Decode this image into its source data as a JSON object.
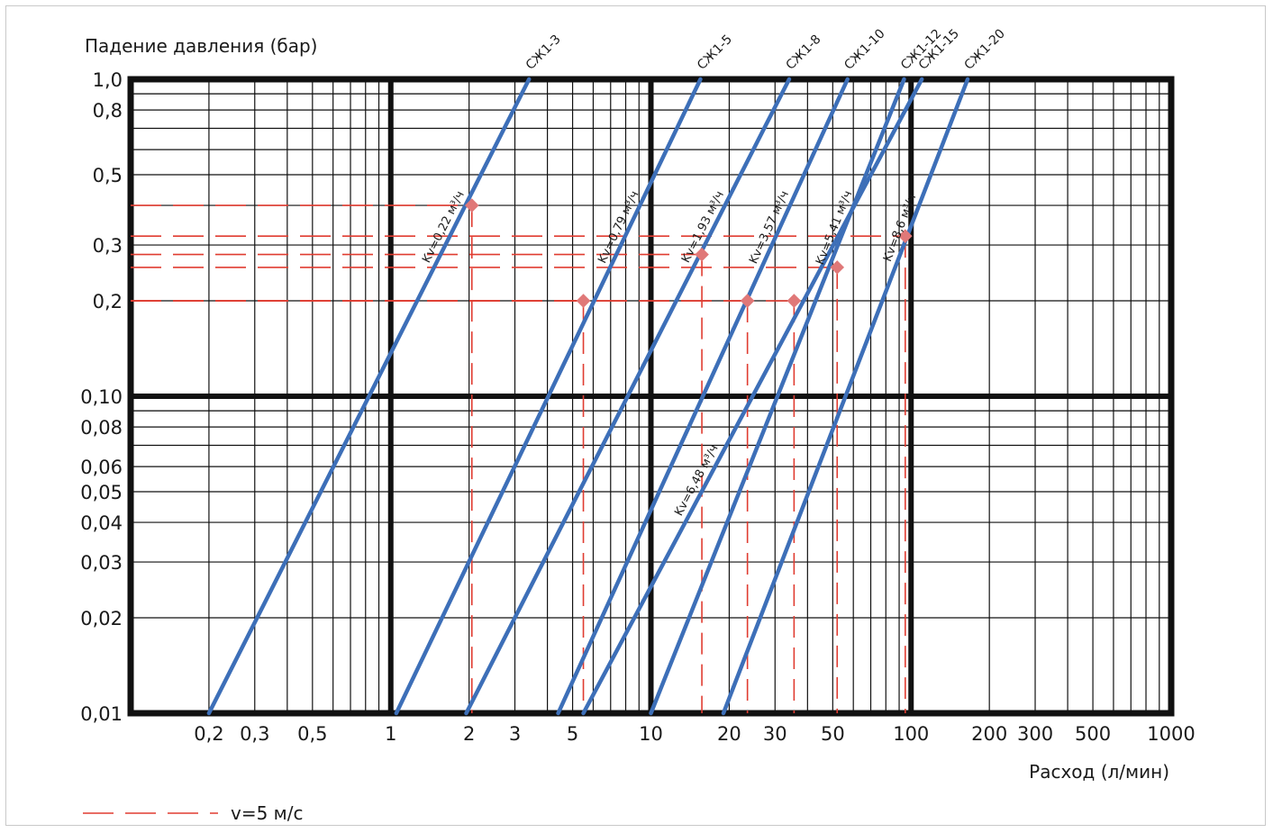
{
  "chart_data": {
    "type": "line",
    "scale": {
      "x": "log",
      "y": "log"
    },
    "xlim": [
      0.1,
      1000
    ],
    "ylim": [
      0.01,
      1.0
    ],
    "xlabel": "Расход (л/мин)",
    "ylabel": "Падение давления (бар)",
    "grid": true,
    "x_ticks": [
      {
        "v": 0.2,
        "label": "0,2"
      },
      {
        "v": 0.3,
        "label": "0,3"
      },
      {
        "v": 0.5,
        "label": "0,5"
      },
      {
        "v": 1,
        "label": "1"
      },
      {
        "v": 2,
        "label": "2"
      },
      {
        "v": 3,
        "label": "3"
      },
      {
        "v": 5,
        "label": "5"
      },
      {
        "v": 10,
        "label": "10"
      },
      {
        "v": 20,
        "label": "20"
      },
      {
        "v": 30,
        "label": "30"
      },
      {
        "v": 50,
        "label": "50"
      },
      {
        "v": 100,
        "label": "100"
      },
      {
        "v": 200,
        "label": "200"
      },
      {
        "v": 300,
        "label": "300"
      },
      {
        "v": 500,
        "label": "500"
      },
      {
        "v": 1000,
        "label": "1000"
      }
    ],
    "y_ticks": [
      {
        "v": 1.0,
        "label": "1,0"
      },
      {
        "v": 0.8,
        "label": "0,8"
      },
      {
        "v": 0.5,
        "label": "0,5"
      },
      {
        "v": 0.3,
        "label": "0,3"
      },
      {
        "v": 0.2,
        "label": "0,2"
      },
      {
        "v": 0.1,
        "label": "0,10"
      },
      {
        "v": 0.08,
        "label": "0,08"
      },
      {
        "v": 0.06,
        "label": "0,06"
      },
      {
        "v": 0.05,
        "label": "0,05"
      },
      {
        "v": 0.04,
        "label": "0,04"
      },
      {
        "v": 0.03,
        "label": "0,03"
      },
      {
        "v": 0.02,
        "label": "0,02"
      },
      {
        "v": 0.01,
        "label": "0,01"
      }
    ],
    "series": [
      {
        "name": "СЖ1-3",
        "kv_label": "Kv=0,22 м³/ч",
        "x": [
          0.2,
          3.4
        ],
        "y": [
          0.01,
          1.0
        ],
        "marker": {
          "x": 2.05,
          "y": 0.4
        }
      },
      {
        "name": "СЖ1-5",
        "kv_label": "Kv=0,79 м³/ч",
        "x": [
          1.05,
          15.5
        ],
        "y": [
          0.01,
          1.0
        ],
        "marker": {
          "x": 5.5,
          "y": 0.2
        }
      },
      {
        "name": "СЖ1-8",
        "kv_label": "Kv=1,93 м³/ч",
        "x": [
          1.95,
          34
        ],
        "y": [
          0.01,
          1.0
        ],
        "marker": {
          "x": 15.7,
          "y": 0.28
        }
      },
      {
        "name": "СЖ1-10",
        "kv_label": "Kv=3,57 м³/ч",
        "x": [
          4.4,
          57
        ],
        "y": [
          0.01,
          1.0
        ],
        "marker": {
          "x": 23.5,
          "y": 0.2
        }
      },
      {
        "name": "СЖ1-12",
        "kv_label": "Kv=5,41 м³/ч",
        "x": [
          10,
          94
        ],
        "y": [
          0.01,
          1.0
        ],
        "marker": {
          "x": 35.5,
          "y": 0.2
        }
      },
      {
        "name": "СЖ1-15",
        "kv_label": "Kv=6,48 м³/ч",
        "x": [
          5.5,
          110
        ],
        "y": [
          0.01,
          1.0
        ],
        "marker": {
          "x": 52,
          "y": 0.255
        }
      },
      {
        "name": "СЖ1-20",
        "kv_label": "Kv=8,6 м³/ч",
        "x": [
          19,
          165
        ],
        "y": [
          0.01,
          1.0
        ],
        "marker": {
          "x": 95,
          "y": 0.32
        }
      }
    ],
    "legend": {
      "position": "bottom-left",
      "entries": [
        {
          "label": "v=5 м/с",
          "style": "dashed",
          "color": "#e03c31"
        }
      ]
    },
    "colors": {
      "series": "#3d6fb8",
      "reference": "#e03c31",
      "marker": "#e07878",
      "grid": "#111111"
    }
  }
}
